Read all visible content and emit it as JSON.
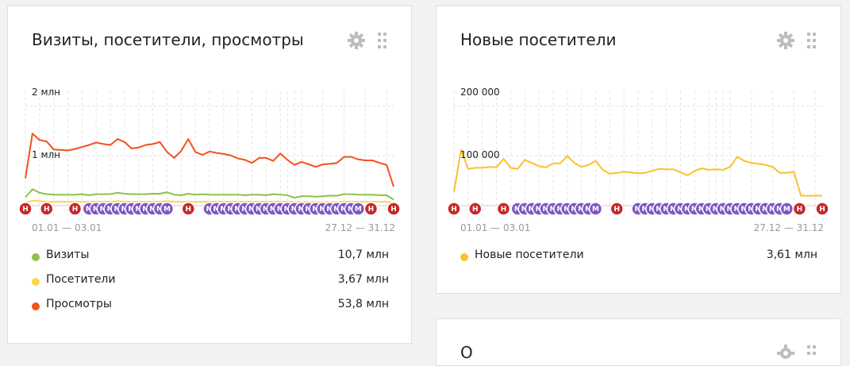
{
  "widgets": [
    {
      "title": "Визиты, посетители, просмотры",
      "range_start": "01.01 — 03.01",
      "range_end": "27.12 — 31.12",
      "legend": [
        {
          "name": "Визиты",
          "value": "10,7 млн",
          "color": "#8bc34a"
        },
        {
          "name": "Посетители",
          "value": "3,67 млн",
          "color": "#ffd54f"
        },
        {
          "name": "Просмотры",
          "value": "53,8 млн",
          "color": "#f4511e"
        }
      ]
    },
    {
      "title": "Новые посетители",
      "range_start": "01.01 — 03.01",
      "range_end": "27.12 — 31.12",
      "legend": [
        {
          "name": "Новые посетители",
          "value": "3,61 млн",
          "color": "#fbc02d"
        }
      ]
    },
    {
      "title": "О"
    }
  ],
  "icons": {
    "settings": "gear-icon",
    "drag": "drag-handle-icon"
  },
  "marker_labels": {
    "holiday": "Н",
    "marker": "М"
  },
  "chart_data": [
    {
      "type": "line",
      "title": "Визиты, посетители, просмотры",
      "ytick_labels": [
        "1 млн",
        "2 млн"
      ],
      "yticks": [
        1000000,
        2000000
      ],
      "ylim": [
        0,
        2300000
      ],
      "x_range_labels": [
        "01.01 — 03.01",
        "27.12 — 31.12"
      ],
      "x_periods": 53,
      "series": [
        {
          "name": "Просмотры",
          "color": "#f4511e",
          "values": [
            550000,
            1450000,
            1320000,
            1290000,
            1130000,
            1120000,
            1110000,
            1140000,
            1180000,
            1220000,
            1270000,
            1240000,
            1220000,
            1340000,
            1280000,
            1150000,
            1170000,
            1220000,
            1240000,
            1280000,
            1080000,
            960000,
            1100000,
            1340000,
            1080000,
            1020000,
            1090000,
            1060000,
            1040000,
            1010000,
            950000,
            920000,
            860000,
            960000,
            960000,
            900000,
            1050000,
            920000,
            820000,
            880000,
            830000,
            780000,
            830000,
            840000,
            860000,
            980000,
            980000,
            930000,
            910000,
            910000,
            860000,
            820000,
            380000
          ]
        },
        {
          "name": "Визиты",
          "color": "#8bc34a",
          "values": [
            170000,
            330000,
            260000,
            230000,
            220000,
            220000,
            220000,
            220000,
            230000,
            210000,
            230000,
            230000,
            230000,
            260000,
            240000,
            230000,
            230000,
            230000,
            240000,
            240000,
            270000,
            220000,
            210000,
            240000,
            220000,
            230000,
            220000,
            220000,
            220000,
            220000,
            220000,
            210000,
            220000,
            220000,
            210000,
            230000,
            220000,
            210000,
            160000,
            190000,
            190000,
            180000,
            190000,
            200000,
            200000,
            230000,
            230000,
            220000,
            220000,
            220000,
            210000,
            210000,
            120000
          ]
        },
        {
          "name": "Посетители",
          "color": "#ffd54f",
          "values": [
            60000,
            100000,
            90000,
            80000,
            80000,
            80000,
            80000,
            80000,
            80000,
            80000,
            80000,
            80000,
            80000,
            90000,
            80000,
            80000,
            80000,
            80000,
            80000,
            80000,
            90000,
            80000,
            80000,
            80000,
            80000,
            80000,
            80000,
            80000,
            80000,
            80000,
            80000,
            80000,
            80000,
            80000,
            80000,
            80000,
            80000,
            80000,
            70000,
            70000,
            70000,
            70000,
            70000,
            70000,
            70000,
            80000,
            80000,
            80000,
            80000,
            80000,
            80000,
            80000,
            50000
          ]
        }
      ]
    },
    {
      "type": "line",
      "title": "Новые посетители",
      "ytick_labels": [
        "100 000",
        "200 000"
      ],
      "yticks": [
        100000,
        200000
      ],
      "ylim": [
        0,
        230000
      ],
      "x_range_labels": [
        "01.01 — 03.01",
        "27.12 — 31.12"
      ],
      "x_periods": 53,
      "series": [
        {
          "name": "Новые посетители",
          "color": "#fbc02d",
          "values": [
            28000,
            112000,
            74000,
            76000,
            76000,
            78000,
            77000,
            94000,
            76000,
            74000,
            92000,
            86000,
            79000,
            77000,
            85000,
            85000,
            100000,
            86000,
            78000,
            82000,
            90000,
            72000,
            64000,
            66000,
            68000,
            67000,
            65000,
            66000,
            70000,
            74000,
            73000,
            73000,
            67000,
            61000,
            70000,
            75000,
            72000,
            73000,
            72000,
            78000,
            98000,
            90000,
            86000,
            84000,
            82000,
            78000,
            66000,
            66000,
            68000,
            20000,
            20000,
            20000,
            20000
          ]
        }
      ]
    }
  ]
}
